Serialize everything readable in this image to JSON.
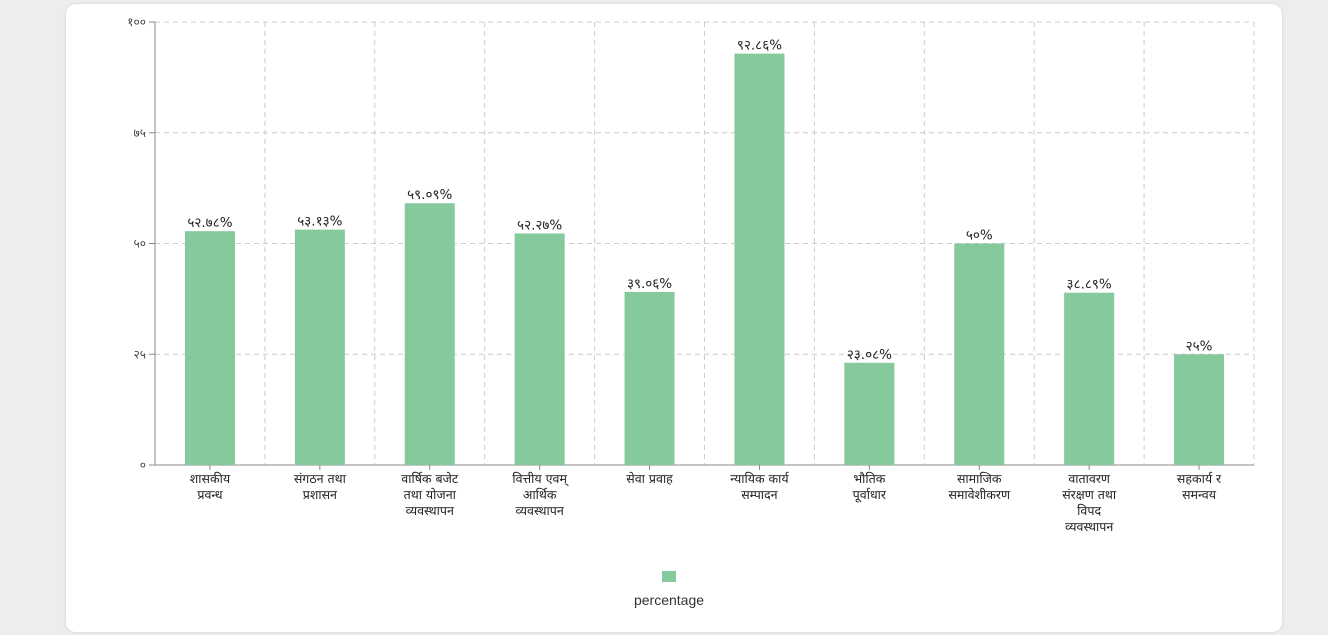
{
  "chart_data": {
    "type": "bar",
    "categories": [
      [
        "शासकीय",
        "प्रवन्ध"
      ],
      [
        "संगठन तथा",
        "प्रशासन"
      ],
      [
        "वार्षिक बजेट",
        "तथा योजना",
        "व्यवस्थापन"
      ],
      [
        "वित्तीय एवम्",
        "आर्थिक",
        "व्यवस्थापन"
      ],
      [
        "सेवा प्रवाह"
      ],
      [
        "न्यायिक कार्य",
        "सम्पादन"
      ],
      [
        "भौतिक",
        "पूर्वाधार"
      ],
      [
        "सामाजिक",
        "समावेशीकरण"
      ],
      [
        "वातावरण",
        "संरक्षण तथा",
        "विपद",
        "व्यवस्थापन"
      ],
      [
        "सहकार्य र",
        "समन्वय"
      ]
    ],
    "series": [
      {
        "name": "percentage",
        "values": [
          52.78,
          53.13,
          59.09,
          52.27,
          39.06,
          92.86,
          23.08,
          50,
          38.89,
          25
        ],
        "data_labels": [
          "५२.७८%",
          "५३.१३%",
          "५९.०९%",
          "५२.२७%",
          "३९.०६%",
          "९२.८६%",
          "२३.०८%",
          "५०%",
          "३८.८९%",
          "२५%"
        ]
      }
    ],
    "y_ticks": [
      0,
      25,
      50,
      75,
      100
    ],
    "y_tick_labels": [
      "०",
      "२५",
      "५०",
      "७५",
      "१००"
    ],
    "ylim": [
      0,
      100
    ],
    "grid": true,
    "legend_position": "bottom-center",
    "colors": {
      "bar": "#85c99c",
      "grid": "#cccccc",
      "axis": "#888888"
    }
  }
}
